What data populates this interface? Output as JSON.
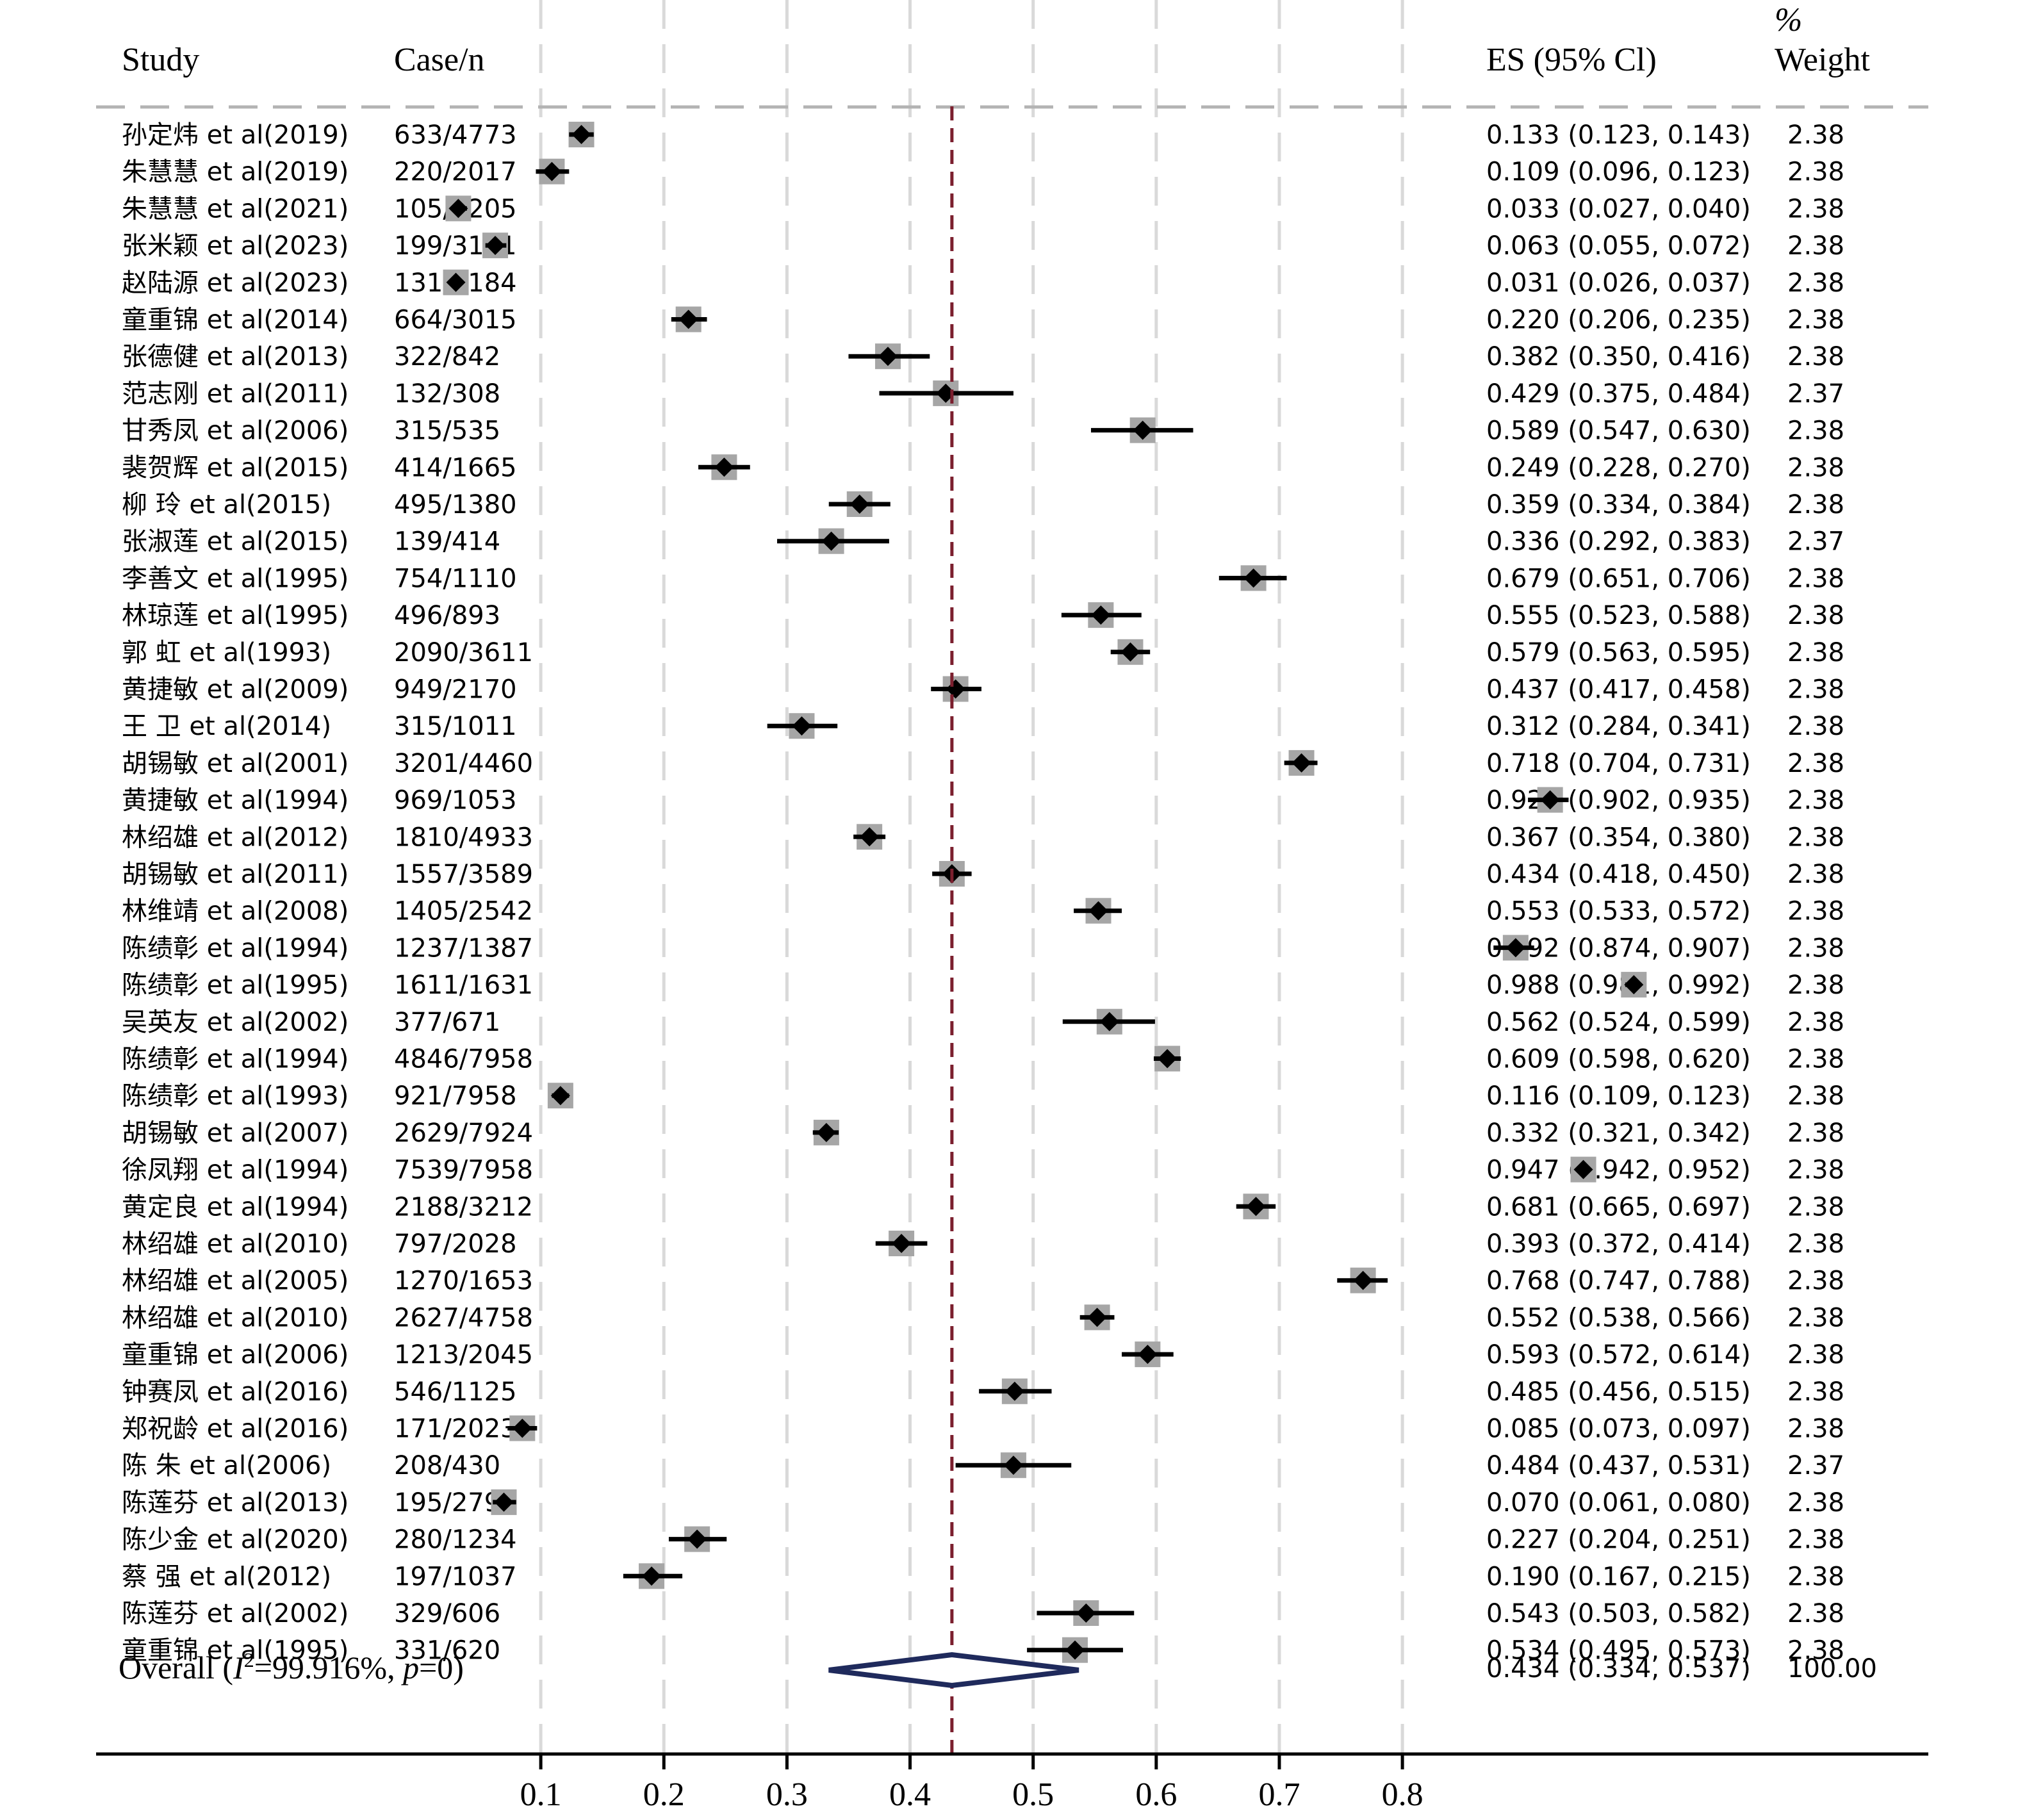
{
  "header": {
    "study": "Study",
    "case_n": "Case/n",
    "es": "ES (95% Cl)",
    "weight_top": "%",
    "weight_bottom": "Weight"
  },
  "chart_data": {
    "type": "forest",
    "studies": [
      {
        "label": "孙定炜 et al(2019)",
        "case_n": "633/4773",
        "es_text": "0.133 (0.123, 0.143)",
        "weight_text": "2.38",
        "es": 0.133,
        "lo": 0.123,
        "hi": 0.143,
        "weight": 2.38
      },
      {
        "label": "朱慧慧 et al(2019)",
        "case_n": "220/2017",
        "es_text": "0.109 (0.096, 0.123)",
        "weight_text": "2.38",
        "es": 0.109,
        "lo": 0.096,
        "hi": 0.123,
        "weight": 2.38
      },
      {
        "label": "朱慧慧 et al(2021)",
        "case_n": "105/3205",
        "es_text": "0.033 (0.027, 0.040)",
        "weight_text": "2.38",
        "es": 0.033,
        "lo": 0.027,
        "hi": 0.04,
        "weight": 2.38
      },
      {
        "label": "张米颖 et al(2023)",
        "case_n": "199/3141",
        "es_text": "0.063 (0.055, 0.072)",
        "weight_text": "2.38",
        "es": 0.063,
        "lo": 0.055,
        "hi": 0.072,
        "weight": 2.38
      },
      {
        "label": "赵陆源 et al(2023)",
        "case_n": "131/4184",
        "es_text": "0.031 (0.026, 0.037)",
        "weight_text": "2.38",
        "es": 0.031,
        "lo": 0.026,
        "hi": 0.037,
        "weight": 2.38
      },
      {
        "label": "童重锦 et al(2014)",
        "case_n": "664/3015",
        "es_text": "0.220 (0.206, 0.235)",
        "weight_text": "2.38",
        "es": 0.22,
        "lo": 0.206,
        "hi": 0.235,
        "weight": 2.38
      },
      {
        "label": "张德健 et al(2013)",
        "case_n": "322/842",
        "es_text": "0.382 (0.350, 0.416)",
        "weight_text": "2.38",
        "es": 0.382,
        "lo": 0.35,
        "hi": 0.416,
        "weight": 2.38
      },
      {
        "label": "范志刚 et al(2011)",
        "case_n": "132/308",
        "es_text": "0.429 (0.375, 0.484)",
        "weight_text": "2.37",
        "es": 0.429,
        "lo": 0.375,
        "hi": 0.484,
        "weight": 2.37
      },
      {
        "label": "甘秀凤 et al(2006)",
        "case_n": "315/535",
        "es_text": "0.589 (0.547, 0.630)",
        "weight_text": "2.38",
        "es": 0.589,
        "lo": 0.547,
        "hi": 0.63,
        "weight": 2.38
      },
      {
        "label": "裴贺辉 et al(2015)",
        "case_n": "414/1665",
        "es_text": "0.249 (0.228, 0.270)",
        "weight_text": "2.38",
        "es": 0.249,
        "lo": 0.228,
        "hi": 0.27,
        "weight": 2.38
      },
      {
        "label": "柳 玲 et al(2015)",
        "case_n": "495/1380",
        "es_text": "0.359 (0.334, 0.384)",
        "weight_text": "2.38",
        "es": 0.359,
        "lo": 0.334,
        "hi": 0.384,
        "weight": 2.38
      },
      {
        "label": "张淑莲 et al(2015)",
        "case_n": "139/414",
        "es_text": "0.336 (0.292, 0.383)",
        "weight_text": "2.37",
        "es": 0.336,
        "lo": 0.292,
        "hi": 0.383,
        "weight": 2.37
      },
      {
        "label": "李善文 et al(1995)",
        "case_n": "754/1110",
        "es_text": "0.679 (0.651, 0.706)",
        "weight_text": "2.38",
        "es": 0.679,
        "lo": 0.651,
        "hi": 0.706,
        "weight": 2.38
      },
      {
        "label": "林琼莲 et al(1995)",
        "case_n": "496/893",
        "es_text": "0.555 (0.523, 0.588)",
        "weight_text": "2.38",
        "es": 0.555,
        "lo": 0.523,
        "hi": 0.588,
        "weight": 2.38
      },
      {
        "label": "郭 虹 et al(1993)",
        "case_n": "2090/3611",
        "es_text": "0.579 (0.563, 0.595)",
        "weight_text": "2.38",
        "es": 0.579,
        "lo": 0.563,
        "hi": 0.595,
        "weight": 2.38
      },
      {
        "label": "黄捷敏 et al(2009)",
        "case_n": "949/2170",
        "es_text": "0.437 (0.417, 0.458)",
        "weight_text": "2.38",
        "es": 0.437,
        "lo": 0.417,
        "hi": 0.458,
        "weight": 2.38
      },
      {
        "label": "王 卫 et al(2014)",
        "case_n": "315/1011",
        "es_text": "0.312 (0.284, 0.341)",
        "weight_text": "2.38",
        "es": 0.312,
        "lo": 0.284,
        "hi": 0.341,
        "weight": 2.38
      },
      {
        "label": "胡锡敏 et al(2001)",
        "case_n": "3201/4460",
        "es_text": "0.718 (0.704, 0.731)",
        "weight_text": "2.38",
        "es": 0.718,
        "lo": 0.704,
        "hi": 0.731,
        "weight": 2.38
      },
      {
        "label": "黄捷敏 et al(1994)",
        "case_n": "969/1053",
        "es_text": "0.920 (0.902, 0.935)",
        "weight_text": "2.38",
        "es": 0.92,
        "lo": 0.902,
        "hi": 0.935,
        "weight": 2.38
      },
      {
        "label": "林绍雄 et al(2012)",
        "case_n": "1810/4933",
        "es_text": "0.367 (0.354, 0.380)",
        "weight_text": "2.38",
        "es": 0.367,
        "lo": 0.354,
        "hi": 0.38,
        "weight": 2.38
      },
      {
        "label": "胡锡敏 et al(2011)",
        "case_n": "1557/3589",
        "es_text": "0.434 (0.418, 0.450)",
        "weight_text": "2.38",
        "es": 0.434,
        "lo": 0.418,
        "hi": 0.45,
        "weight": 2.38
      },
      {
        "label": "林维靖 et al(2008)",
        "case_n": "1405/2542",
        "es_text": "0.553 (0.533, 0.572)",
        "weight_text": "2.38",
        "es": 0.553,
        "lo": 0.533,
        "hi": 0.572,
        "weight": 2.38
      },
      {
        "label": "陈绩彰 et al(1994)",
        "case_n": "1237/1387",
        "es_text": "0.892 (0.874, 0.907)",
        "weight_text": "2.38",
        "es": 0.892,
        "lo": 0.874,
        "hi": 0.907,
        "weight": 2.38
      },
      {
        "label": "陈绩彰 et al(1995)",
        "case_n": "1611/1631",
        "es_text": "0.988 (0.981, 0.992)",
        "weight_text": "2.38",
        "es": 0.988,
        "lo": 0.981,
        "hi": 0.992,
        "weight": 2.38
      },
      {
        "label": "吴英友 et al(2002)",
        "case_n": "377/671",
        "es_text": "0.562 (0.524, 0.599)",
        "weight_text": "2.38",
        "es": 0.562,
        "lo": 0.524,
        "hi": 0.599,
        "weight": 2.38
      },
      {
        "label": "陈绩彰 et al(1994)",
        "case_n": "4846/7958",
        "es_text": "0.609 (0.598, 0.620)",
        "weight_text": "2.38",
        "es": 0.609,
        "lo": 0.598,
        "hi": 0.62,
        "weight": 2.38
      },
      {
        "label": "陈绩彰 et al(1993)",
        "case_n": "921/7958",
        "es_text": "0.116 (0.109, 0.123)",
        "weight_text": "2.38",
        "es": 0.116,
        "lo": 0.109,
        "hi": 0.123,
        "weight": 2.38
      },
      {
        "label": "胡锡敏 et al(2007)",
        "case_n": "2629/7924",
        "es_text": "0.332 (0.321, 0.342)",
        "weight_text": "2.38",
        "es": 0.332,
        "lo": 0.321,
        "hi": 0.342,
        "weight": 2.38
      },
      {
        "label": "徐凤翔 et al(1994)",
        "case_n": "7539/7958",
        "es_text": "0.947 (0.942, 0.952)",
        "weight_text": "2.38",
        "es": 0.947,
        "lo": 0.942,
        "hi": 0.952,
        "weight": 2.38
      },
      {
        "label": "黄定良 et al(1994)",
        "case_n": "2188/3212",
        "es_text": "0.681 (0.665, 0.697)",
        "weight_text": "2.38",
        "es": 0.681,
        "lo": 0.665,
        "hi": 0.697,
        "weight": 2.38
      },
      {
        "label": "林绍雄 et al(2010)",
        "case_n": "797/2028",
        "es_text": "0.393 (0.372, 0.414)",
        "weight_text": "2.38",
        "es": 0.393,
        "lo": 0.372,
        "hi": 0.414,
        "weight": 2.38
      },
      {
        "label": "林绍雄 et al(2005)",
        "case_n": "1270/1653",
        "es_text": "0.768 (0.747, 0.788)",
        "weight_text": "2.38",
        "es": 0.768,
        "lo": 0.747,
        "hi": 0.788,
        "weight": 2.38
      },
      {
        "label": "林绍雄 et al(2010)",
        "case_n": "2627/4758",
        "es_text": "0.552 (0.538, 0.566)",
        "weight_text": "2.38",
        "es": 0.552,
        "lo": 0.538,
        "hi": 0.566,
        "weight": 2.38
      },
      {
        "label": "童重锦 et al(2006)",
        "case_n": "1213/2045",
        "es_text": "0.593 (0.572, 0.614)",
        "weight_text": "2.38",
        "es": 0.593,
        "lo": 0.572,
        "hi": 0.614,
        "weight": 2.38
      },
      {
        "label": "钟赛凤 et al(2016)",
        "case_n": "546/1125",
        "es_text": "0.485 (0.456, 0.515)",
        "weight_text": "2.38",
        "es": 0.485,
        "lo": 0.456,
        "hi": 0.515,
        "weight": 2.38
      },
      {
        "label": "郑祝龄 et al(2016)",
        "case_n": "171/2023",
        "es_text": "0.085 (0.073, 0.097)",
        "weight_text": "2.38",
        "es": 0.085,
        "lo": 0.073,
        "hi": 0.097,
        "weight": 2.38
      },
      {
        "label": "陈 朱 et al(2006)",
        "case_n": "208/430",
        "es_text": "0.484 (0.437, 0.531)",
        "weight_text": "2.37",
        "es": 0.484,
        "lo": 0.437,
        "hi": 0.531,
        "weight": 2.37
      },
      {
        "label": "陈莲芬 et al(2013)",
        "case_n": "195/2790",
        "es_text": "0.070 (0.061, 0.080)",
        "weight_text": "2.38",
        "es": 0.07,
        "lo": 0.061,
        "hi": 0.08,
        "weight": 2.38
      },
      {
        "label": "陈少金 et al(2020)",
        "case_n": "280/1234",
        "es_text": "0.227 (0.204, 0.251)",
        "weight_text": "2.38",
        "es": 0.227,
        "lo": 0.204,
        "hi": 0.251,
        "weight": 2.38
      },
      {
        "label": "蔡 强 et al(2012)",
        "case_n": "197/1037",
        "es_text": "0.190 (0.167, 0.215)",
        "weight_text": "2.38",
        "es": 0.19,
        "lo": 0.167,
        "hi": 0.215,
        "weight": 2.38
      },
      {
        "label": "陈莲芬 et al(2002)",
        "case_n": "329/606",
        "es_text": "0.543 (0.503, 0.582)",
        "weight_text": "2.38",
        "es": 0.543,
        "lo": 0.503,
        "hi": 0.582,
        "weight": 2.38
      },
      {
        "label": "童重锦 et al(1995)",
        "case_n": "331/620",
        "es_text": "0.534 (0.495, 0.573)",
        "weight_text": "2.38",
        "es": 0.534,
        "lo": 0.495,
        "hi": 0.573,
        "weight": 2.38
      }
    ],
    "overall": {
      "label_prefix": "Overall (",
      "label_i": "I",
      "label_sup": "2",
      "label_mid": "=99.916%, ",
      "label_p": "p",
      "label_suffix": "=0)",
      "es_text": "0.434 (0.334, 0.537)",
      "weight_text": "100.00",
      "es": 0.434,
      "lo": 0.334,
      "hi": 0.537
    },
    "x_ticks": [
      0.1,
      0.2,
      0.3,
      0.4,
      0.5,
      0.6,
      0.7,
      0.8
    ],
    "x_tick_labels": [
      "0.1",
      "0.2",
      "0.3",
      "0.4",
      "0.5",
      "0.6",
      "0.7",
      "0.8"
    ],
    "xlim": [
      0,
      0.992
    ],
    "reference_line": 0.434,
    "grid": true,
    "colors": {
      "marker": "#000000",
      "weight_box": "#a6a6a6",
      "ci_line": "#000000",
      "reference": "#7b1f2e",
      "diamond": "#1f2a5c",
      "grid": "#d9d9d9",
      "separator": "#b3b3b3"
    }
  }
}
